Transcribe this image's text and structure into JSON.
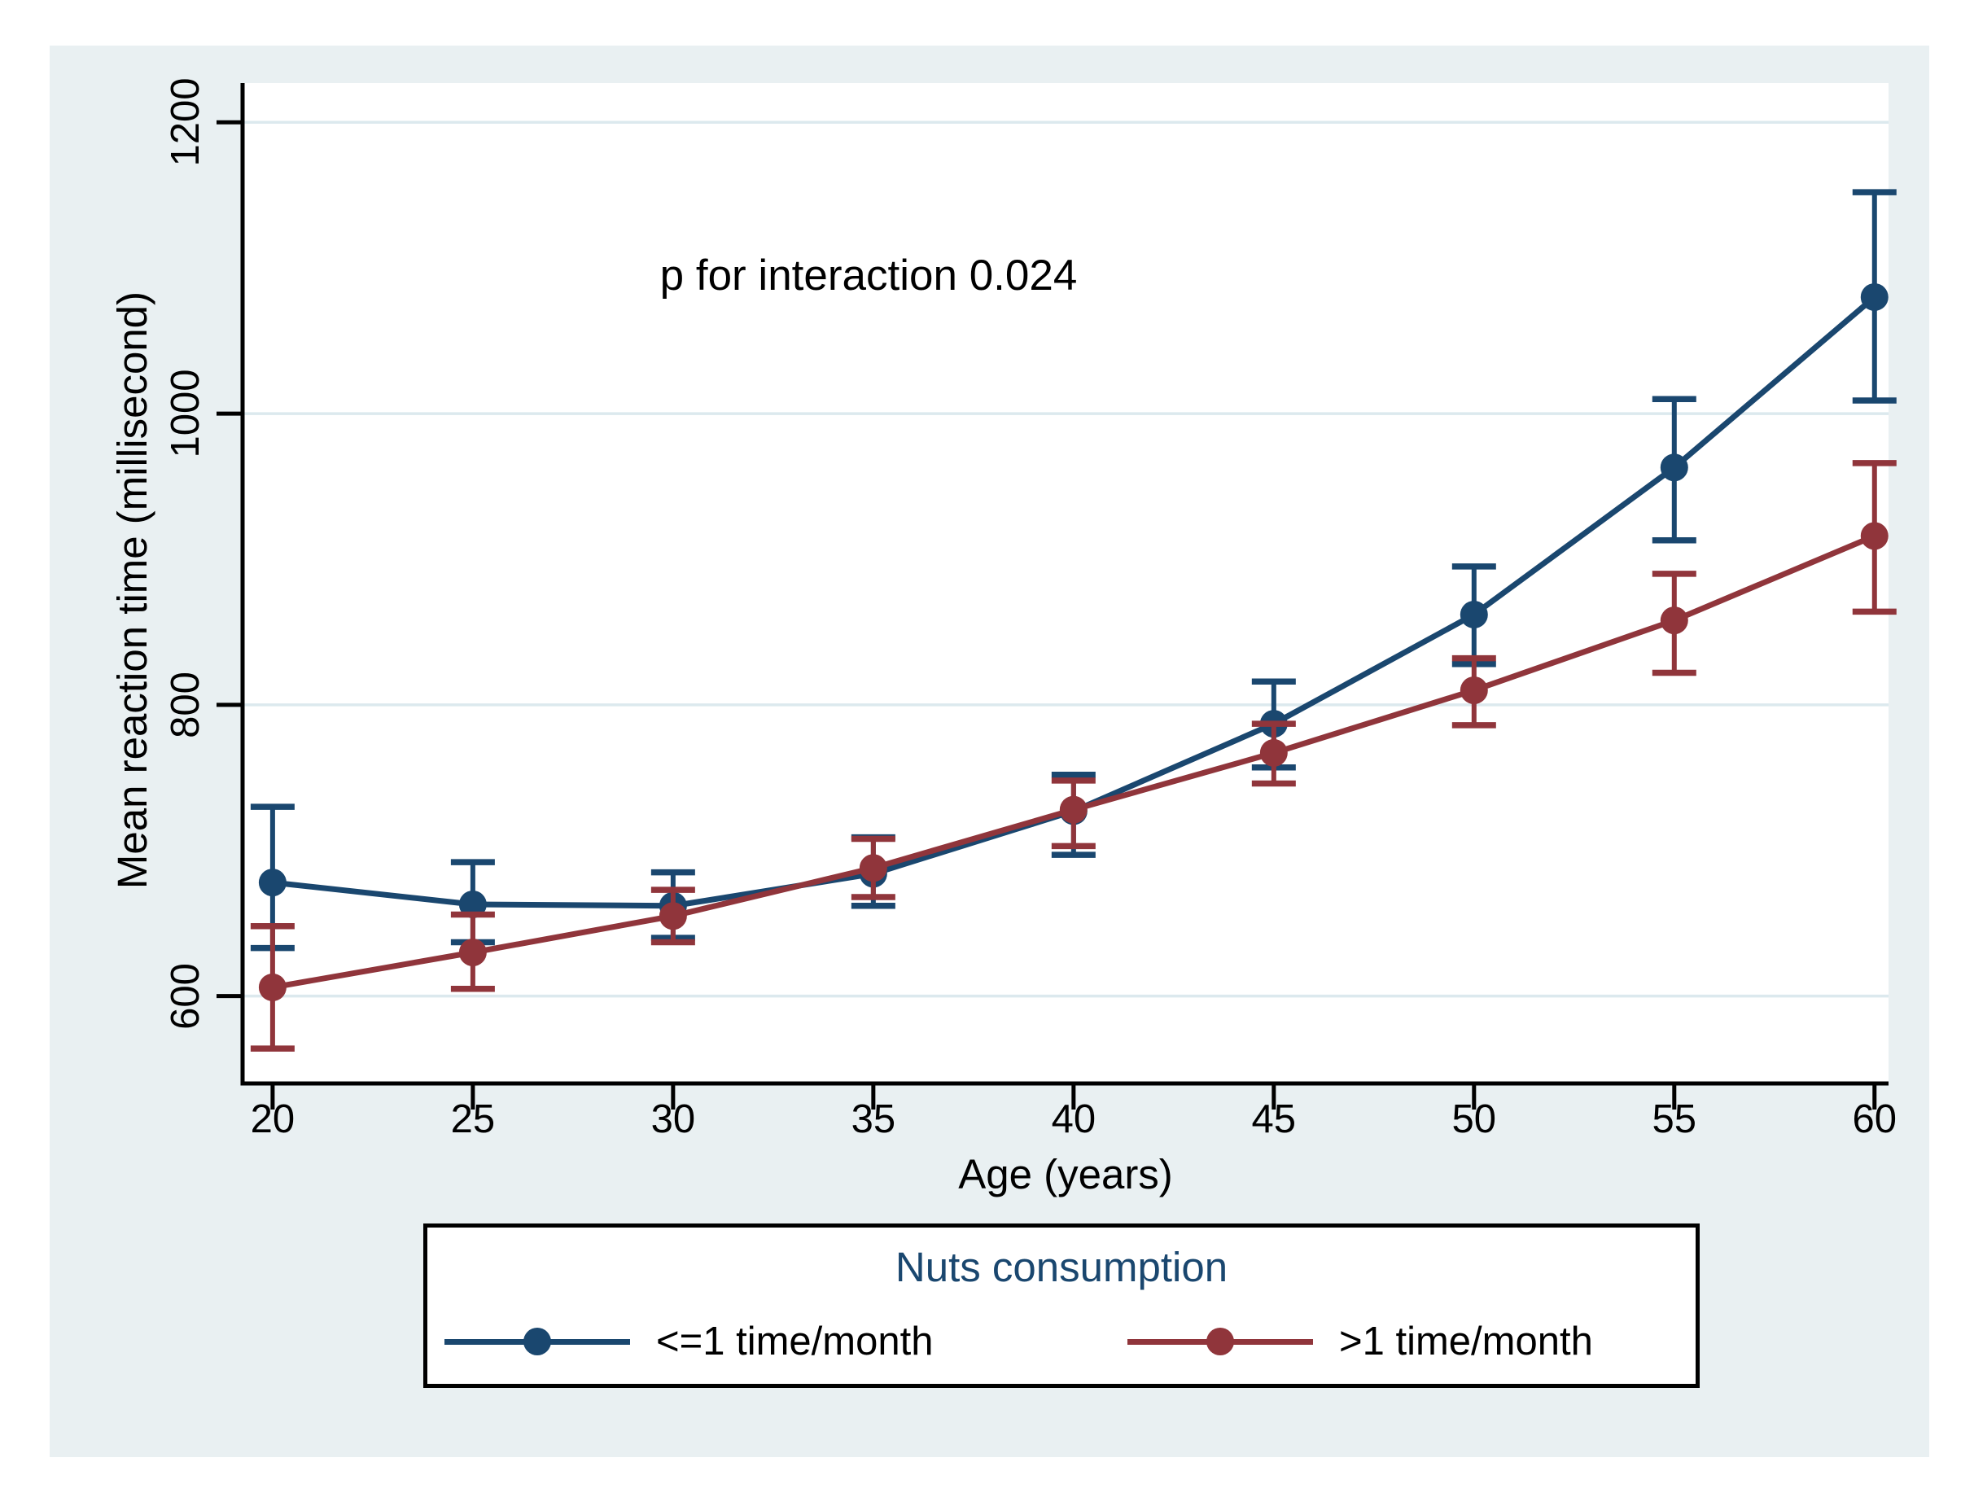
{
  "chart_data": {
    "type": "line",
    "annotation": "p for interaction 0.024",
    "xlabel": "Age (years)",
    "ylabel": "Mean reaction time (millisecond)",
    "x": [
      20,
      25,
      30,
      35,
      40,
      45,
      50,
      55,
      60
    ],
    "x_tick_labels": [
      "20",
      "25",
      "30",
      "35",
      "40",
      "45",
      "50",
      "55",
      "60"
    ],
    "y_tick_values": [
      600,
      800,
      1000,
      1200
    ],
    "y_tick_labels": [
      "600",
      "800",
      "1000",
      "1200"
    ],
    "xlim": [
      19.25,
      60.35
    ],
    "ylim": [
      540,
      1227
    ],
    "grid": "horizontal",
    "series": [
      {
        "name": "<=1 time/month",
        "color": "#1a476f",
        "values": [
          678,
          663,
          662,
          684,
          727,
          787,
          862,
          963,
          1080
        ],
        "ci_low": [
          633,
          637,
          640,
          662,
          697,
          757,
          828,
          913,
          1009
        ],
        "ci_high": [
          730,
          692,
          685,
          709,
          752,
          816,
          895,
          1010,
          1152
        ]
      },
      {
        "name": ">1 time/month",
        "color": "#90353b",
        "values": [
          606,
          630,
          655,
          688,
          728,
          767,
          810,
          858,
          916
        ],
        "ci_low": [
          564,
          605,
          637,
          668,
          703,
          746,
          786,
          822,
          864
        ],
        "ci_high": [
          648,
          656,
          673,
          708,
          748,
          787,
          832,
          890,
          966
        ]
      }
    ],
    "legend": {
      "title": "Nuts consumption",
      "position": "bottom"
    }
  },
  "colors": {
    "panel_bg": "#e9f0f2",
    "plot_bg": "#ffffff",
    "gridline": "#dce9ee",
    "axis": "#000000",
    "legend_title": "#1a476f"
  }
}
